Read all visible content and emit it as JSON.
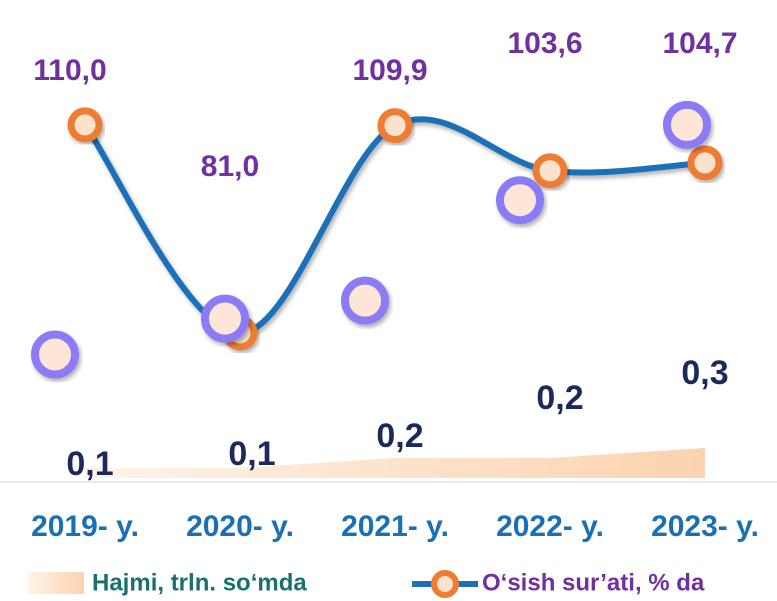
{
  "chart_data": {
    "type": "line",
    "categories": [
      "2019- y.",
      "2020- y.",
      "2021- y.",
      "2022- y.",
      "2023- y."
    ],
    "ylim": [
      75,
      115
    ],
    "y2lim": [
      0,
      3
    ],
    "series": [
      {
        "name": "Hajmi, trln. so‘mda",
        "type": "area",
        "axis": "y2",
        "color": "#fbd9b8",
        "values": [
          0.1,
          0.1,
          0.2,
          0.2,
          0.3
        ],
        "value_labels": [
          "0,1",
          "0,1",
          "0,2",
          "0,2",
          "0,3"
        ]
      },
      {
        "name": "O‘sish sur’ati, % da",
        "type": "line",
        "color": "#1f70b8",
        "marker_color": "#ed7d31",
        "values": [
          110.0,
          81.0,
          109.9,
          103.6,
          104.7
        ],
        "value_labels": [
          "110,0",
          "81,0",
          "109,9",
          "103,6",
          "104,7"
        ]
      },
      {
        "type": "scatter",
        "color": "#8b7cf6",
        "values": [
          78,
          83,
          85.5,
          99.5,
          110
        ]
      }
    ]
  }
}
